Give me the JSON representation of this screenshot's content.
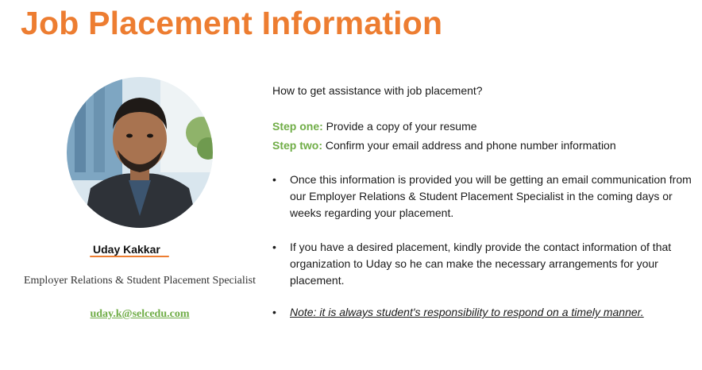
{
  "title": "Job Placement Information",
  "contact": {
    "name": "Uday Kakkar",
    "role": "Employer Relations & Student Placement Specialist",
    "email": "uday.k@selcedu.com"
  },
  "content": {
    "question": "How to get assistance with job placement?",
    "steps": [
      {
        "label": "Step one:",
        "text": " Provide a copy of your resume"
      },
      {
        "label": "Step two:",
        "text": " Confirm your email address and phone number information"
      }
    ],
    "bullets": [
      "Once this information is provided you will be getting an email communication from our Employer Relations & Student Placement Specialist  in the coming days or weeks regarding your placement.",
      "If you have a desired placement, kindly provide the contact information of that organization to Uday so he can make the necessary arrangements for your placement.",
      "Note:  it is always student's responsibility to respond on a timely manner."
    ],
    "bullet_symbol": "•"
  },
  "colors": {
    "title": "#ED7D31",
    "step_label": "#70AD47",
    "email": "#70AD47",
    "underline": "#ED7D31"
  }
}
